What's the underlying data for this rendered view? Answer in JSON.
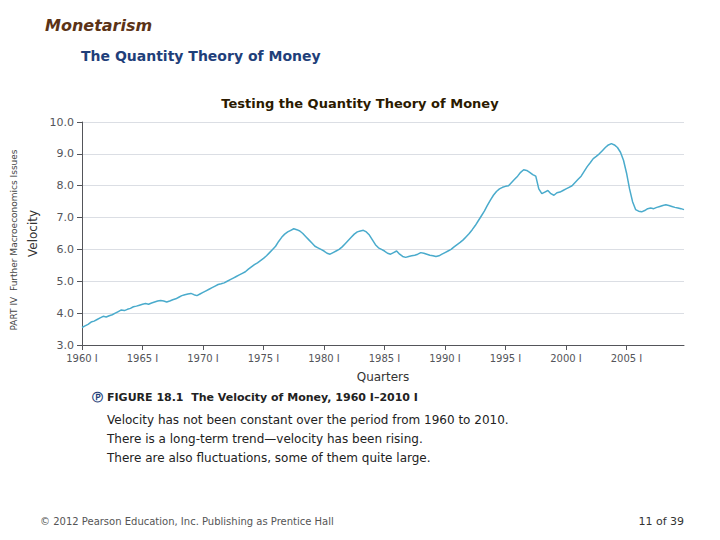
{
  "chart_data": {
    "type": "line",
    "suptitle": "Monetarism",
    "subtitle": "The Quantity Theory of Money",
    "title": "Testing the Quantity Theory of Money",
    "xlabel": "Quarters",
    "ylabel": "Velocity",
    "caption_symbol": "Ⓟ",
    "caption_title": "FIGURE 18.1  The Velocity of Money, 1960 I–2010 I",
    "caption_lines": [
      "Velocity has not been constant over the period from 1960 to 2010.",
      "There is a long-term trend—velocity has been rising.",
      "There are also fluctuations, some of them quite large."
    ],
    "side_label": "PART IV  Further Macroeconomics Issues",
    "footer": "© 2012 Pearson Education, Inc. Publishing as Prentice Hall",
    "page_label": "11 of 39",
    "color": "#4AABCC",
    "grid": true,
    "ylim": [
      3.0,
      10.0
    ],
    "yticks": [
      {
        "value": 3.0,
        "label": "3.0"
      },
      {
        "value": 4.0,
        "label": "4.0"
      },
      {
        "value": 5.0,
        "label": "5.0"
      },
      {
        "value": 6.0,
        "label": "6.0"
      },
      {
        "value": 7.0,
        "label": "7.0"
      },
      {
        "value": 8.0,
        "label": "8.0"
      },
      {
        "value": 9.0,
        "label": "9.0"
      },
      {
        "value": 10.0,
        "label": "10.0"
      }
    ],
    "categories": [
      "1960 I",
      null,
      null,
      null,
      null,
      null,
      null,
      null,
      null,
      null,
      null,
      null,
      null,
      null,
      null,
      null,
      null,
      null,
      null,
      null,
      "1965 I",
      null,
      null,
      null,
      null,
      null,
      null,
      null,
      null,
      null,
      null,
      null,
      null,
      null,
      null,
      null,
      null,
      null,
      null,
      null,
      "1970 I",
      null,
      null,
      null,
      null,
      null,
      null,
      null,
      null,
      null,
      null,
      null,
      null,
      null,
      null,
      null,
      null,
      null,
      null,
      null,
      "1975 I",
      null,
      null,
      null,
      null,
      null,
      null,
      null,
      null,
      null,
      null,
      null,
      null,
      null,
      null,
      null,
      null,
      null,
      null,
      null,
      "1980 I",
      null,
      null,
      null,
      null,
      null,
      null,
      null,
      null,
      null,
      null,
      null,
      null,
      null,
      null,
      null,
      null,
      null,
      null,
      null,
      "1985 I",
      null,
      null,
      null,
      null,
      null,
      null,
      null,
      null,
      null,
      null,
      null,
      null,
      null,
      null,
      null,
      null,
      null,
      null,
      null,
      "1990 I",
      null,
      null,
      null,
      null,
      null,
      null,
      null,
      null,
      null,
      null,
      null,
      null,
      null,
      null,
      null,
      null,
      null,
      null,
      null,
      "1995 I",
      null,
      null,
      null,
      null,
      null,
      null,
      null,
      null,
      null,
      null,
      null,
      null,
      null,
      null,
      null,
      null,
      null,
      null,
      null,
      "2000 I",
      null,
      null,
      null,
      null,
      null,
      null,
      null,
      null,
      null,
      null,
      null,
      null,
      null,
      null,
      null,
      null,
      null,
      null,
      null,
      "2005 I",
      null,
      null,
      null,
      null,
      null,
      null,
      null,
      null,
      null,
      null,
      null,
      null,
      null,
      null,
      null,
      null,
      null,
      null,
      null
    ],
    "values": [
      3.55,
      3.6,
      3.65,
      3.72,
      3.75,
      3.8,
      3.85,
      3.9,
      3.88,
      3.92,
      3.95,
      4.0,
      4.05,
      4.1,
      4.08,
      4.12,
      4.15,
      4.2,
      4.22,
      4.25,
      4.28,
      4.3,
      4.28,
      4.32,
      4.35,
      4.38,
      4.4,
      4.38,
      4.35,
      4.38,
      4.42,
      4.45,
      4.5,
      4.55,
      4.58,
      4.6,
      4.62,
      4.58,
      4.55,
      4.6,
      4.65,
      4.7,
      4.75,
      4.8,
      4.85,
      4.9,
      4.92,
      4.95,
      5.0,
      5.05,
      5.1,
      5.15,
      5.2,
      5.25,
      5.3,
      5.38,
      5.45,
      5.52,
      5.58,
      5.65,
      5.72,
      5.8,
      5.9,
      6.0,
      6.1,
      6.25,
      6.38,
      6.48,
      6.55,
      6.6,
      6.65,
      6.62,
      6.58,
      6.5,
      6.4,
      6.3,
      6.2,
      6.1,
      6.05,
      6.0,
      5.95,
      5.88,
      5.85,
      5.9,
      5.95,
      6.0,
      6.08,
      6.18,
      6.28,
      6.38,
      6.48,
      6.55,
      6.58,
      6.6,
      6.55,
      6.45,
      6.3,
      6.15,
      6.05,
      6.0,
      5.95,
      5.88,
      5.85,
      5.9,
      5.95,
      5.85,
      5.78,
      5.75,
      5.78,
      5.8,
      5.82,
      5.85,
      5.9,
      5.88,
      5.85,
      5.82,
      5.8,
      5.78,
      5.8,
      5.85,
      5.9,
      5.95,
      6.0,
      6.08,
      6.15,
      6.22,
      6.3,
      6.4,
      6.5,
      6.62,
      6.75,
      6.9,
      7.05,
      7.2,
      7.38,
      7.55,
      7.7,
      7.82,
      7.9,
      7.95,
      7.98,
      8.0,
      8.1,
      8.2,
      8.3,
      8.42,
      8.5,
      8.48,
      8.42,
      8.35,
      8.3,
      7.9,
      7.75,
      7.8,
      7.85,
      7.75,
      7.7,
      7.78,
      7.8,
      7.85,
      7.9,
      7.95,
      8.0,
      8.1,
      8.2,
      8.3,
      8.45,
      8.6,
      8.72,
      8.85,
      8.92,
      9.0,
      9.1,
      9.2,
      9.28,
      9.32,
      9.28,
      9.2,
      9.05,
      8.8,
      8.4,
      7.9,
      7.5,
      7.25,
      7.2,
      7.18,
      7.22,
      7.28,
      7.3,
      7.28,
      7.32,
      7.35,
      7.38,
      7.4,
      7.38,
      7.35,
      7.32,
      7.3,
      7.28,
      7.25
    ]
  }
}
